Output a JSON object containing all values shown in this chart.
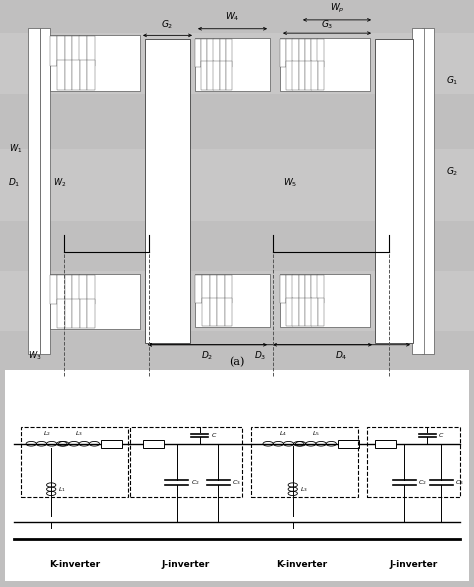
{
  "fig_width": 4.74,
  "fig_height": 5.87,
  "bg_gray": "#c0bfbf",
  "strip_gray": "#c8c7c7",
  "white": "#ffffff",
  "dark_gray": "#a0a0a0",
  "inverter_labels": [
    "K-inverter",
    "J-inverter",
    "K-inverter",
    "J-inverter"
  ]
}
